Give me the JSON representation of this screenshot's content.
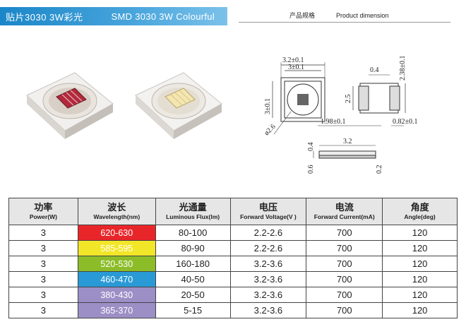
{
  "banner": {
    "title_cn": "贴片3030 3W彩光",
    "title_en": "SMD 3030 3W Colourful"
  },
  "dim_header": {
    "cn": "产品规格",
    "en": "Product dimension"
  },
  "dimensions": {
    "outer_width": "3.2±0.1",
    "inner_width": "3±0.1",
    "side_height": "3±0.1",
    "diameter": "ø2.6",
    "pad_gap": "0.4",
    "total_height": "2.38±0.1",
    "pad_height": "2.5",
    "pad_width_left": "1.98±0.1",
    "pad_width_right": "0.82±0.1",
    "side_length": "3.2",
    "side_thick_a": "0.4",
    "side_thick_b": "0.6",
    "side_thick_c": "0.2"
  },
  "table": {
    "headers": [
      {
        "cn": "功率",
        "en": "Power(W)"
      },
      {
        "cn": "波长",
        "en": "Wavelength(nm)"
      },
      {
        "cn": "光通量",
        "en": "Luminous Flux(lm)"
      },
      {
        "cn": "电压",
        "en": "Forward Voltage(V )"
      },
      {
        "cn": "电流",
        "en": "Forward Current(mA)"
      },
      {
        "cn": "角度",
        "en": "Angle(deg)"
      }
    ],
    "rows": [
      {
        "power": "3",
        "wavelength": "620-630",
        "color": "#e8262a",
        "flux": "80-100",
        "voltage": "2.2-2.6",
        "current": "700",
        "angle": "120"
      },
      {
        "power": "3",
        "wavelength": "585-595",
        "color": "#f2e629",
        "flux": "80-90",
        "voltage": "2.2-2.6",
        "current": "700",
        "angle": "120"
      },
      {
        "power": "3",
        "wavelength": "520-530",
        "color": "#8cbd29",
        "flux": "160-180",
        "voltage": "3.2-3.6",
        "current": "700",
        "angle": "120"
      },
      {
        "power": "3",
        "wavelength": "460-470",
        "color": "#2a9ad6",
        "flux": "40-50",
        "voltage": "3.2-3.6",
        "current": "700",
        "angle": "120"
      },
      {
        "power": "3",
        "wavelength": "380-430",
        "color": "#9c8fc6",
        "flux": "20-50",
        "voltage": "3.2-3.6",
        "current": "700",
        "angle": "120"
      },
      {
        "power": "3",
        "wavelength": "365-370",
        "color": "#9c8fc6",
        "flux": "5-15",
        "voltage": "3.2-3.6",
        "current": "700",
        "angle": "120"
      }
    ]
  }
}
